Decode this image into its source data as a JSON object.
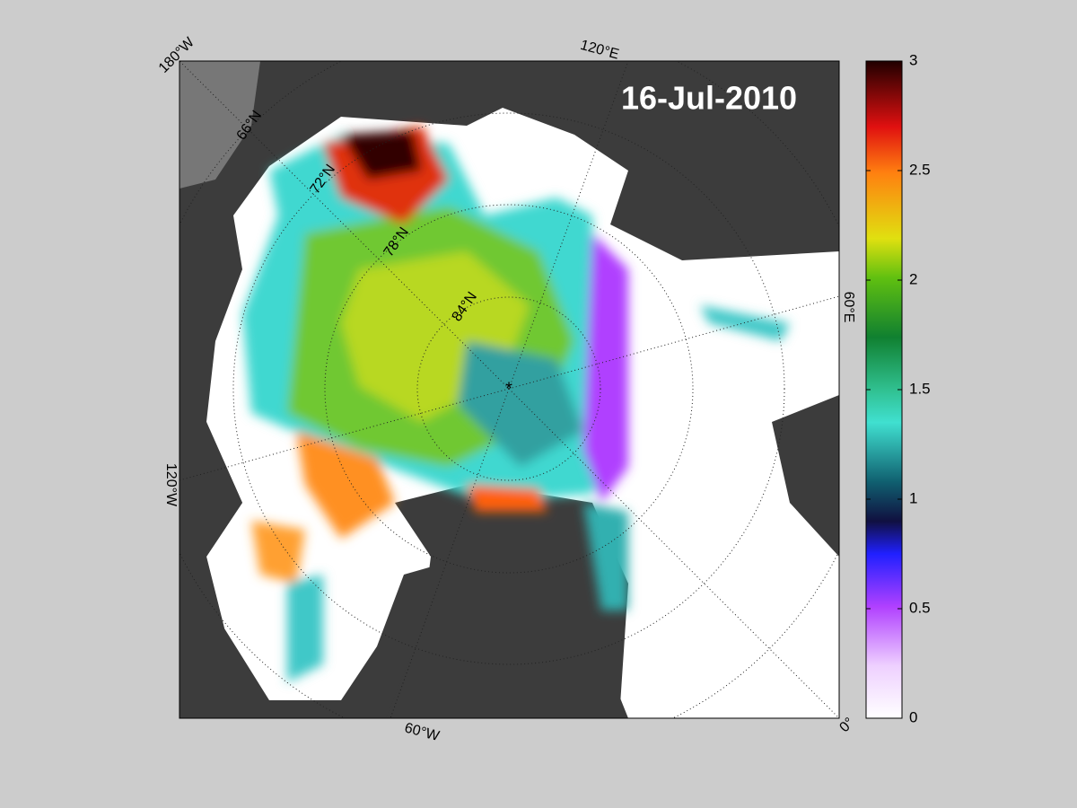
{
  "map": {
    "date": "16-Jul-2010",
    "longitude_labels": [
      "180°W",
      "120°E",
      "60°E",
      "0°",
      "60°W",
      "120°W"
    ],
    "latitude_labels": [
      "66°N",
      "72°N",
      "78°N",
      "84°N"
    ],
    "colorbar": {
      "lim": [
        0,
        3
      ],
      "ticks": [
        0,
        0.5,
        1,
        1.5,
        2,
        2.5,
        3
      ]
    }
  }
}
